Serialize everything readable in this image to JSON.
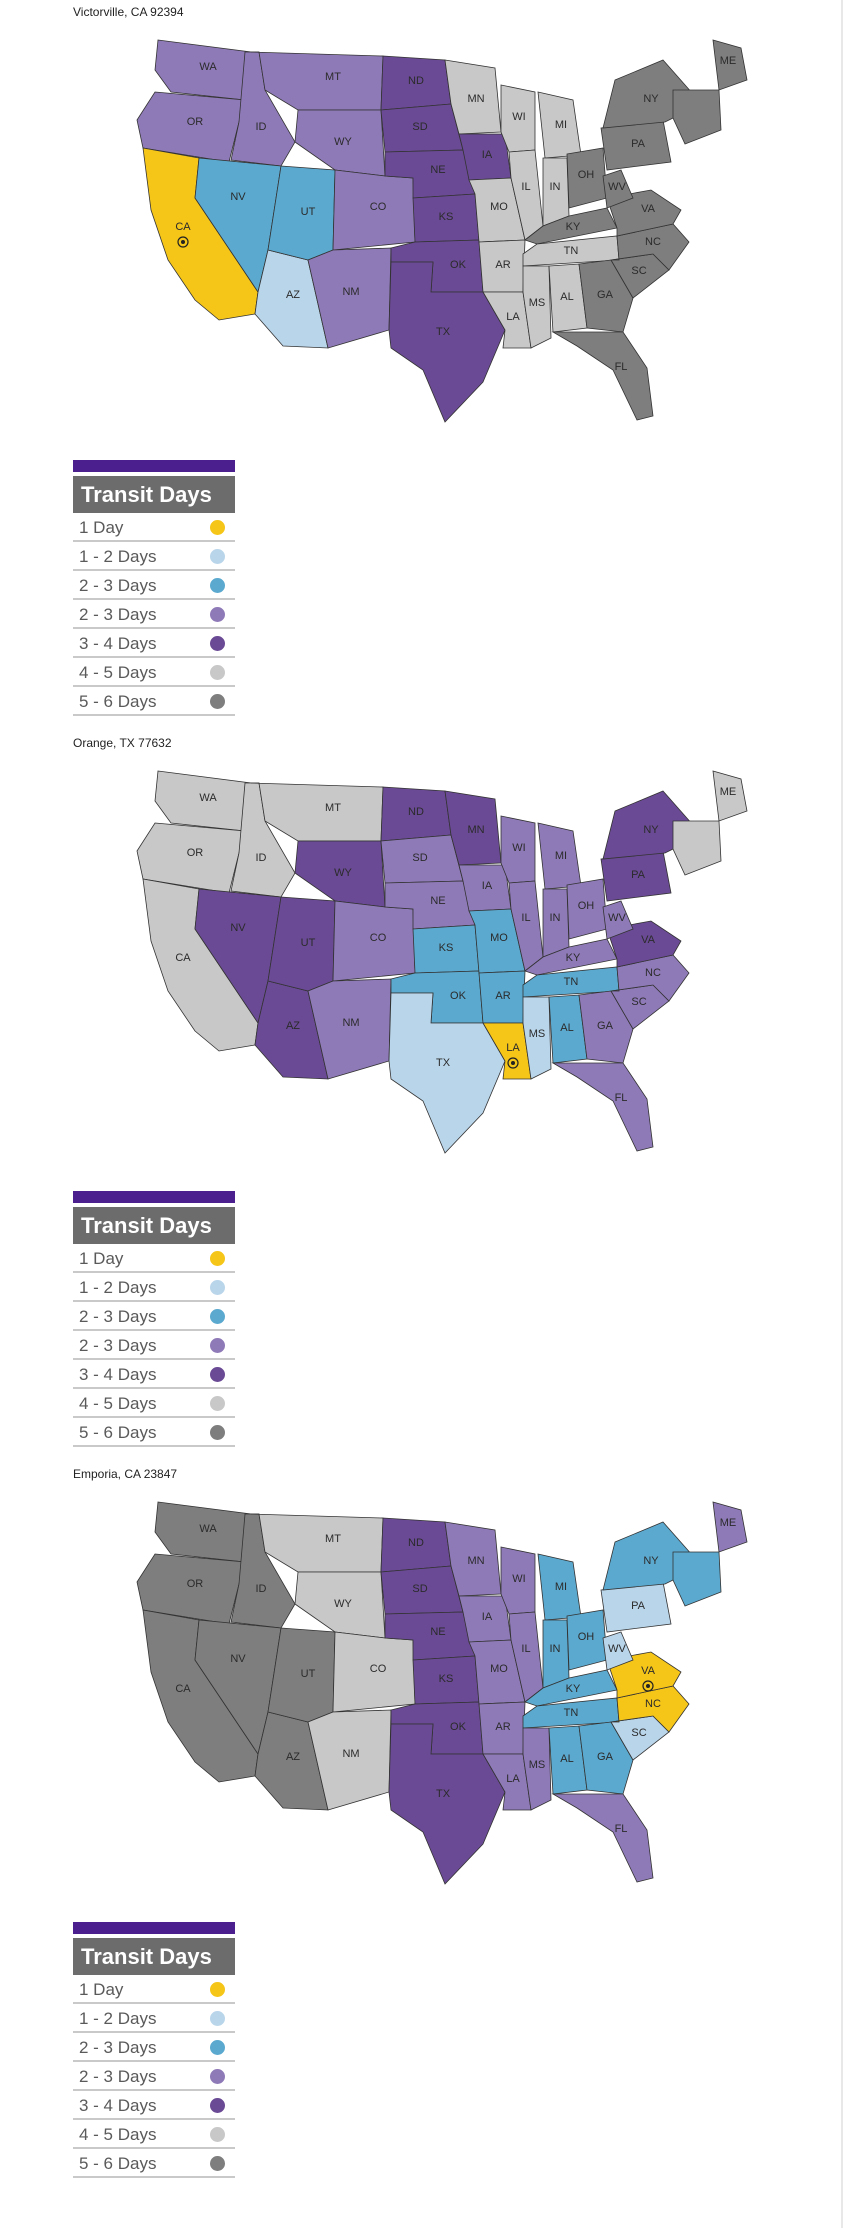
{
  "legend": {
    "title": "Transit Days",
    "entries": [
      {
        "label": "1 Day",
        "color": "#f5c518"
      },
      {
        "label": "1 - 2 Days",
        "color": "#b9d5ea"
      },
      {
        "label": "2 - 3 Days",
        "color": "#5ba9cf"
      },
      {
        "label": "2 - 3 Days",
        "color": "#8f7ab8"
      },
      {
        "label": "3 - 4 Days",
        "color": "#6a4a94"
      },
      {
        "label": "4 - 5 Days",
        "color": "#c8c8c8"
      },
      {
        "label": "5 - 6 Days",
        "color": "#7e7e7e"
      }
    ]
  },
  "maps": [
    {
      "title": "Victorville, CA 92394",
      "origin_state": "CA",
      "states": [
        {
          "code": "WA",
          "color": "#8f7ab8"
        },
        {
          "code": "OR",
          "color": "#8f7ab8"
        },
        {
          "code": "CA",
          "color": "#f5c518"
        },
        {
          "code": "ID",
          "color": "#8f7ab8"
        },
        {
          "code": "NV",
          "color": "#5ba9cf"
        },
        {
          "code": "AZ",
          "color": "#b9d5ea"
        },
        {
          "code": "UT",
          "color": "#5ba9cf"
        },
        {
          "code": "MT",
          "color": "#8f7ab8"
        },
        {
          "code": "WY",
          "color": "#8f7ab8"
        },
        {
          "code": "CO",
          "color": "#8f7ab8"
        },
        {
          "code": "NM",
          "color": "#8f7ab8"
        },
        {
          "code": "ND",
          "color": "#6a4a94"
        },
        {
          "code": "SD",
          "color": "#6a4a94"
        },
        {
          "code": "NE",
          "color": "#6a4a94"
        },
        {
          "code": "KS",
          "color": "#6a4a94"
        },
        {
          "code": "OK",
          "color": "#6a4a94"
        },
        {
          "code": "TX",
          "color": "#6a4a94"
        },
        {
          "code": "MN",
          "color": "#c8c8c8"
        },
        {
          "code": "IA",
          "color": "#6a4a94"
        },
        {
          "code": "MO",
          "color": "#c8c8c8"
        },
        {
          "code": "AR",
          "color": "#c8c8c8"
        },
        {
          "code": "LA",
          "color": "#c8c8c8"
        },
        {
          "code": "WI",
          "color": "#c8c8c8"
        },
        {
          "code": "IL",
          "color": "#c8c8c8"
        },
        {
          "code": "MI",
          "color": "#c8c8c8"
        },
        {
          "code": "IN",
          "color": "#c8c8c8"
        },
        {
          "code": "OH",
          "color": "#7e7e7e"
        },
        {
          "code": "KY",
          "color": "#7e7e7e"
        },
        {
          "code": "TN",
          "color": "#c8c8c8"
        },
        {
          "code": "MS",
          "color": "#c8c8c8"
        },
        {
          "code": "AL",
          "color": "#c8c8c8"
        },
        {
          "code": "GA",
          "color": "#7e7e7e"
        },
        {
          "code": "FL",
          "color": "#7e7e7e"
        },
        {
          "code": "SC",
          "color": "#7e7e7e"
        },
        {
          "code": "NC",
          "color": "#7e7e7e"
        },
        {
          "code": "VA",
          "color": "#7e7e7e"
        },
        {
          "code": "WV",
          "color": "#7e7e7e"
        },
        {
          "code": "PA",
          "color": "#7e7e7e"
        },
        {
          "code": "NY",
          "color": "#7e7e7e"
        },
        {
          "code": "ME",
          "color": "#7e7e7e"
        },
        {
          "code": "NE6",
          "color": "#7e7e7e"
        }
      ]
    },
    {
      "title": "Orange, TX 77632",
      "origin_state": "LA",
      "states": [
        {
          "code": "WA",
          "color": "#c8c8c8"
        },
        {
          "code": "OR",
          "color": "#c8c8c8"
        },
        {
          "code": "CA",
          "color": "#c8c8c8"
        },
        {
          "code": "ID",
          "color": "#c8c8c8"
        },
        {
          "code": "NV",
          "color": "#6a4a94"
        },
        {
          "code": "AZ",
          "color": "#6a4a94"
        },
        {
          "code": "UT",
          "color": "#6a4a94"
        },
        {
          "code": "MT",
          "color": "#c8c8c8"
        },
        {
          "code": "WY",
          "color": "#6a4a94"
        },
        {
          "code": "CO",
          "color": "#8f7ab8"
        },
        {
          "code": "NM",
          "color": "#8f7ab8"
        },
        {
          "code": "ND",
          "color": "#6a4a94"
        },
        {
          "code": "SD",
          "color": "#8f7ab8"
        },
        {
          "code": "NE",
          "color": "#8f7ab8"
        },
        {
          "code": "KS",
          "color": "#5ba9cf"
        },
        {
          "code": "OK",
          "color": "#5ba9cf"
        },
        {
          "code": "TX",
          "color": "#b9d5ea"
        },
        {
          "code": "MN",
          "color": "#6a4a94"
        },
        {
          "code": "IA",
          "color": "#8f7ab8"
        },
        {
          "code": "MO",
          "color": "#5ba9cf"
        },
        {
          "code": "AR",
          "color": "#5ba9cf"
        },
        {
          "code": "LA",
          "color": "#f5c518"
        },
        {
          "code": "WI",
          "color": "#8f7ab8"
        },
        {
          "code": "IL",
          "color": "#8f7ab8"
        },
        {
          "code": "MI",
          "color": "#8f7ab8"
        },
        {
          "code": "IN",
          "color": "#8f7ab8"
        },
        {
          "code": "OH",
          "color": "#8f7ab8"
        },
        {
          "code": "KY",
          "color": "#8f7ab8"
        },
        {
          "code": "TN",
          "color": "#5ba9cf"
        },
        {
          "code": "MS",
          "color": "#b9d5ea"
        },
        {
          "code": "AL",
          "color": "#5ba9cf"
        },
        {
          "code": "GA",
          "color": "#8f7ab8"
        },
        {
          "code": "FL",
          "color": "#8f7ab8"
        },
        {
          "code": "SC",
          "color": "#8f7ab8"
        },
        {
          "code": "NC",
          "color": "#8f7ab8"
        },
        {
          "code": "VA",
          "color": "#6a4a94"
        },
        {
          "code": "WV",
          "color": "#8f7ab8"
        },
        {
          "code": "PA",
          "color": "#6a4a94"
        },
        {
          "code": "NY",
          "color": "#6a4a94"
        },
        {
          "code": "ME",
          "color": "#c8c8c8"
        },
        {
          "code": "NE6",
          "color": "#c8c8c8"
        }
      ]
    },
    {
      "title": "Emporia, CA 23847",
      "origin_state": "VA",
      "states": [
        {
          "code": "WA",
          "color": "#7e7e7e"
        },
        {
          "code": "OR",
          "color": "#7e7e7e"
        },
        {
          "code": "CA",
          "color": "#7e7e7e"
        },
        {
          "code": "ID",
          "color": "#7e7e7e"
        },
        {
          "code": "NV",
          "color": "#7e7e7e"
        },
        {
          "code": "AZ",
          "color": "#7e7e7e"
        },
        {
          "code": "UT",
          "color": "#7e7e7e"
        },
        {
          "code": "MT",
          "color": "#c8c8c8"
        },
        {
          "code": "WY",
          "color": "#c8c8c8"
        },
        {
          "code": "CO",
          "color": "#c8c8c8"
        },
        {
          "code": "NM",
          "color": "#c8c8c8"
        },
        {
          "code": "ND",
          "color": "#6a4a94"
        },
        {
          "code": "SD",
          "color": "#6a4a94"
        },
        {
          "code": "NE",
          "color": "#6a4a94"
        },
        {
          "code": "KS",
          "color": "#6a4a94"
        },
        {
          "code": "OK",
          "color": "#6a4a94"
        },
        {
          "code": "TX",
          "color": "#6a4a94"
        },
        {
          "code": "MN",
          "color": "#8f7ab8"
        },
        {
          "code": "IA",
          "color": "#8f7ab8"
        },
        {
          "code": "MO",
          "color": "#8f7ab8"
        },
        {
          "code": "AR",
          "color": "#8f7ab8"
        },
        {
          "code": "LA",
          "color": "#8f7ab8"
        },
        {
          "code": "WI",
          "color": "#8f7ab8"
        },
        {
          "code": "IL",
          "color": "#8f7ab8"
        },
        {
          "code": "MI",
          "color": "#5ba9cf"
        },
        {
          "code": "IN",
          "color": "#5ba9cf"
        },
        {
          "code": "OH",
          "color": "#5ba9cf"
        },
        {
          "code": "KY",
          "color": "#5ba9cf"
        },
        {
          "code": "TN",
          "color": "#5ba9cf"
        },
        {
          "code": "MS",
          "color": "#8f7ab8"
        },
        {
          "code": "AL",
          "color": "#5ba9cf"
        },
        {
          "code": "GA",
          "color": "#5ba9cf"
        },
        {
          "code": "FL",
          "color": "#8f7ab8"
        },
        {
          "code": "SC",
          "color": "#b9d5ea"
        },
        {
          "code": "NC",
          "color": "#f5c518"
        },
        {
          "code": "VA",
          "color": "#f5c518"
        },
        {
          "code": "WV",
          "color": "#b9d5ea"
        },
        {
          "code": "PA",
          "color": "#b9d5ea"
        },
        {
          "code": "NY",
          "color": "#5ba9cf"
        },
        {
          "code": "ME",
          "color": "#8f7ab8"
        },
        {
          "code": "NE6",
          "color": "#5ba9cf"
        }
      ]
    }
  ]
}
